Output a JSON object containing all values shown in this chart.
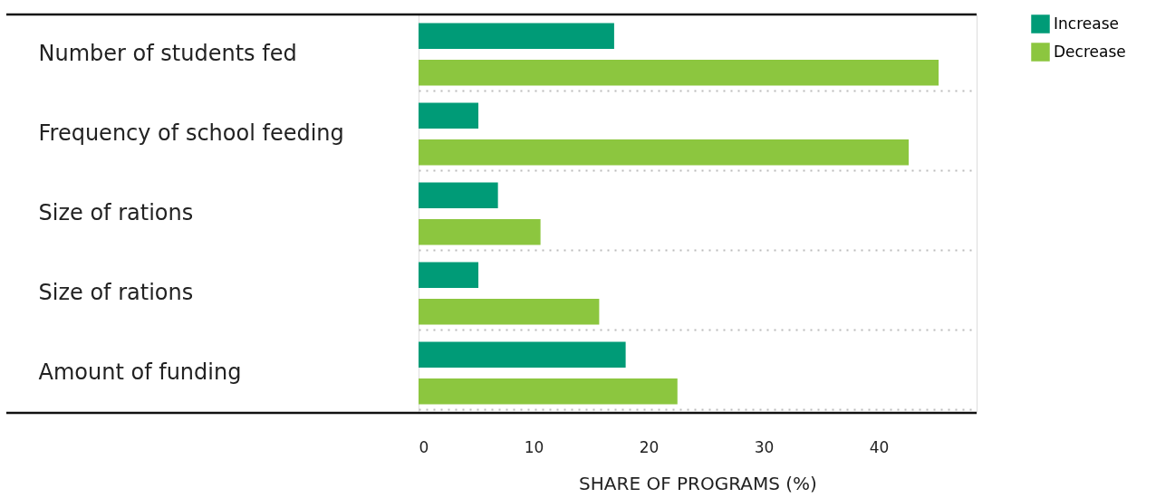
{
  "chart_data": {
    "type": "bar",
    "orientation": "horizontal",
    "xlabel": "SHARE OF PROGRAMS (%)",
    "categories": [
      "Number of students fed",
      "Frequency of school feeding",
      "Size of rations",
      "Size of rations",
      "Amount of funding"
    ],
    "series": [
      {
        "name": "Increase",
        "color": "#009b77",
        "values": [
          17.0,
          5.2,
          6.9,
          5.2,
          18.0
        ]
      },
      {
        "name": "Decrease",
        "color": "#8cc63f",
        "values": [
          45.2,
          42.6,
          10.6,
          15.7,
          22.5
        ]
      }
    ],
    "xlim": [
      0,
      48.5
    ],
    "xticks": [
      0,
      10,
      20,
      30,
      40
    ],
    "grid": "y",
    "legend": "top right"
  }
}
